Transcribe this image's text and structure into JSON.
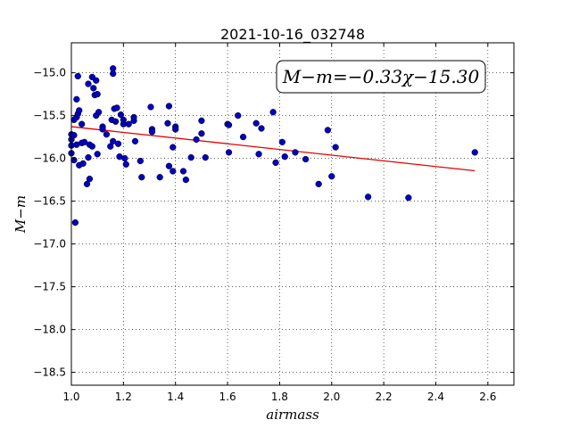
{
  "chart_data": {
    "type": "scatter",
    "title": "2021-10-16_032748",
    "xlabel": "airmass",
    "ylabel": "M−m",
    "xlim": [
      1.0,
      2.7
    ],
    "ylim": [
      -18.65,
      -14.65
    ],
    "y_inverted": true,
    "grid": true,
    "xticks": [
      1.0,
      1.2,
      1.4,
      1.6,
      1.8,
      2.0,
      2.2,
      2.4,
      2.6
    ],
    "xtick_labels": [
      "1.0",
      "1.2",
      "1.4",
      "1.6",
      "1.8",
      "2.0",
      "2.2",
      "2.4",
      "2.6"
    ],
    "yticks": [
      -15.0,
      -15.5,
      -16.0,
      -16.5,
      -17.0,
      -17.5,
      -18.0,
      -18.5
    ],
    "ytick_labels": [
      "−15.0",
      "−15.5",
      "−16.0",
      "−16.5",
      "−17.0",
      "−17.5",
      "−18.0",
      "−18.5"
    ],
    "annotation": "M−m=−0.33χ−15.30",
    "fit_line": {
      "x": [
        1.0,
        2.55
      ],
      "y": [
        -15.63,
        -16.145
      ]
    },
    "colors": {
      "points": "#0000bf",
      "fit": "#e60000"
    },
    "points": [
      {
        "x": 1.0,
        "y": -15.72
      },
      {
        "x": 1.0,
        "y": -15.78
      },
      {
        "x": 1.0,
        "y": -15.85
      },
      {
        "x": 1.0,
        "y": -15.94
      },
      {
        "x": 1.01,
        "y": -16.02
      },
      {
        "x": 1.01,
        "y": -15.55
      },
      {
        "x": 1.01,
        "y": -15.73
      },
      {
        "x": 1.015,
        "y": -16.75
      },
      {
        "x": 1.02,
        "y": -15.31
      },
      {
        "x": 1.02,
        "y": -15.52
      },
      {
        "x": 1.02,
        "y": -15.84
      },
      {
        "x": 1.025,
        "y": -15.04
      },
      {
        "x": 1.025,
        "y": -15.48
      },
      {
        "x": 1.03,
        "y": -16.08
      },
      {
        "x": 1.03,
        "y": -15.44
      },
      {
        "x": 1.04,
        "y": -15.82
      },
      {
        "x": 1.04,
        "y": -15.6
      },
      {
        "x": 1.045,
        "y": -16.06
      },
      {
        "x": 1.05,
        "y": -15.81
      },
      {
        "x": 1.06,
        "y": -16.3
      },
      {
        "x": 1.065,
        "y": -15.13
      },
      {
        "x": 1.065,
        "y": -15.99
      },
      {
        "x": 1.07,
        "y": -16.24
      },
      {
        "x": 1.07,
        "y": -15.84
      },
      {
        "x": 1.08,
        "y": -15.86
      },
      {
        "x": 1.08,
        "y": -15.05
      },
      {
        "x": 1.085,
        "y": -15.18
      },
      {
        "x": 1.09,
        "y": -15.26
      },
      {
        "x": 1.095,
        "y": -15.09
      },
      {
        "x": 1.095,
        "y": -15.5
      },
      {
        "x": 1.1,
        "y": -15.95
      },
      {
        "x": 1.1,
        "y": -15.25
      },
      {
        "x": 1.105,
        "y": -15.46
      },
      {
        "x": 1.12,
        "y": -15.63
      },
      {
        "x": 1.12,
        "y": -15.66
      },
      {
        "x": 1.135,
        "y": -15.72
      },
      {
        "x": 1.15,
        "y": -15.86
      },
      {
        "x": 1.155,
        "y": -15.55
      },
      {
        "x": 1.16,
        "y": -14.95
      },
      {
        "x": 1.16,
        "y": -15.01
      },
      {
        "x": 1.16,
        "y": -15.8
      },
      {
        "x": 1.165,
        "y": -15.42
      },
      {
        "x": 1.17,
        "y": -15.57
      },
      {
        "x": 1.175,
        "y": -15.41
      },
      {
        "x": 1.18,
        "y": -15.83
      },
      {
        "x": 1.185,
        "y": -15.98
      },
      {
        "x": 1.19,
        "y": -15.49
      },
      {
        "x": 1.2,
        "y": -15.6
      },
      {
        "x": 1.2,
        "y": -15.55
      },
      {
        "x": 1.205,
        "y": -16.0
      },
      {
        "x": 1.21,
        "y": -16.07
      },
      {
        "x": 1.22,
        "y": -15.6
      },
      {
        "x": 1.24,
        "y": -15.56
      },
      {
        "x": 1.24,
        "y": -15.52
      },
      {
        "x": 1.245,
        "y": -15.8
      },
      {
        "x": 1.265,
        "y": -16.03
      },
      {
        "x": 1.27,
        "y": -16.22
      },
      {
        "x": 1.305,
        "y": -15.4
      },
      {
        "x": 1.31,
        "y": -15.66
      },
      {
        "x": 1.31,
        "y": -15.69
      },
      {
        "x": 1.34,
        "y": -16.22
      },
      {
        "x": 1.37,
        "y": -15.59
      },
      {
        "x": 1.375,
        "y": -15.39
      },
      {
        "x": 1.375,
        "y": -16.09
      },
      {
        "x": 1.39,
        "y": -16.15
      },
      {
        "x": 1.39,
        "y": -15.87
      },
      {
        "x": 1.4,
        "y": -15.63
      },
      {
        "x": 1.4,
        "y": -15.66
      },
      {
        "x": 1.43,
        "y": -16.15
      },
      {
        "x": 1.44,
        "y": -16.25
      },
      {
        "x": 1.46,
        "y": -15.99
      },
      {
        "x": 1.48,
        "y": -15.78
      },
      {
        "x": 1.5,
        "y": -15.56
      },
      {
        "x": 1.5,
        "y": -15.71
      },
      {
        "x": 1.515,
        "y": -15.99
      },
      {
        "x": 1.6,
        "y": -15.6
      },
      {
        "x": 1.605,
        "y": -15.61
      },
      {
        "x": 1.605,
        "y": -15.93
      },
      {
        "x": 1.64,
        "y": -15.5
      },
      {
        "x": 1.66,
        "y": -15.75
      },
      {
        "x": 1.71,
        "y": -15.59
      },
      {
        "x": 1.72,
        "y": -15.95
      },
      {
        "x": 1.73,
        "y": -15.65
      },
      {
        "x": 1.775,
        "y": -15.46
      },
      {
        "x": 1.785,
        "y": -16.05
      },
      {
        "x": 1.81,
        "y": -15.81
      },
      {
        "x": 1.82,
        "y": -15.98
      },
      {
        "x": 1.86,
        "y": -15.93
      },
      {
        "x": 1.9,
        "y": -16.01
      },
      {
        "x": 1.95,
        "y": -16.3
      },
      {
        "x": 1.985,
        "y": -15.67
      },
      {
        "x": 2.0,
        "y": -16.21
      },
      {
        "x": 2.015,
        "y": -15.87
      },
      {
        "x": 2.14,
        "y": -16.45
      },
      {
        "x": 2.295,
        "y": -16.46
      },
      {
        "x": 2.55,
        "y": -15.93
      }
    ]
  }
}
